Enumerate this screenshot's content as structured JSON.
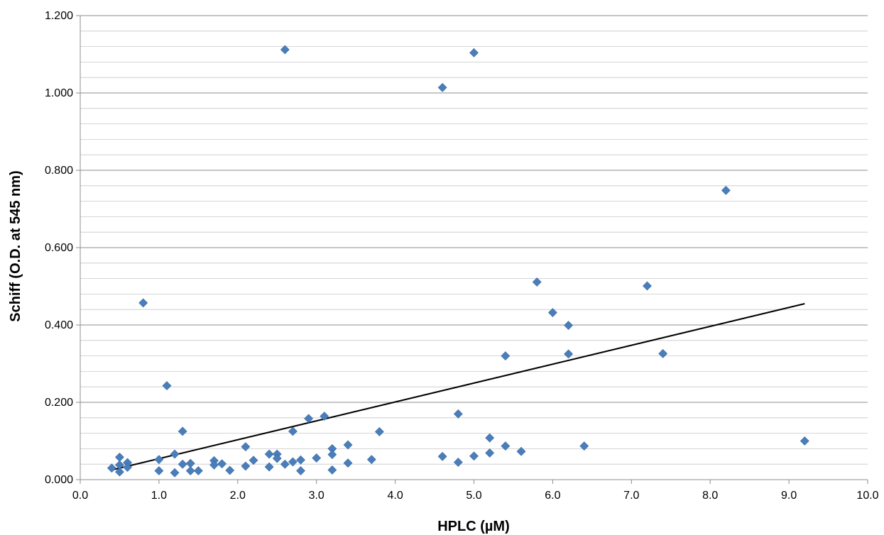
{
  "chart_data": {
    "type": "scatter",
    "title": "",
    "xlabel": "HPLC (µM)",
    "ylabel": "Schiff (O.D. at 545 nm)",
    "xlim": [
      0,
      10
    ],
    "ylim": [
      0,
      1.2
    ],
    "x_ticks": [
      "0.0",
      "1.0",
      "2.0",
      "3.0",
      "4.0",
      "5.0",
      "6.0",
      "7.0",
      "8.0",
      "9.0",
      "10.0"
    ],
    "y_ticks": [
      "0.000",
      "0.200",
      "0.400",
      "0.600",
      "0.800",
      "1.000",
      "1.200"
    ],
    "grid": "horizontal",
    "legend": "none",
    "marker": "diamond",
    "marker_color": "#4a7ebb",
    "trendline": {
      "color": "#000000",
      "x": [
        0.4,
        9.2
      ],
      "y": [
        0.025,
        0.455
      ]
    },
    "points": [
      [
        0.4,
        0.03
      ],
      [
        0.5,
        0.058
      ],
      [
        0.5,
        0.02
      ],
      [
        0.5,
        0.038
      ],
      [
        0.6,
        0.044
      ],
      [
        0.6,
        0.032
      ],
      [
        0.8,
        0.457
      ],
      [
        1.0,
        0.052
      ],
      [
        1.0,
        0.023
      ],
      [
        1.1,
        0.243
      ],
      [
        1.2,
        0.066
      ],
      [
        1.2,
        0.018
      ],
      [
        1.3,
        0.125
      ],
      [
        1.3,
        0.04
      ],
      [
        1.4,
        0.042
      ],
      [
        1.4,
        0.023
      ],
      [
        1.5,
        0.023
      ],
      [
        1.7,
        0.049
      ],
      [
        1.7,
        0.038
      ],
      [
        1.8,
        0.041
      ],
      [
        1.9,
        0.024
      ],
      [
        2.1,
        0.085
      ],
      [
        2.1,
        0.035
      ],
      [
        2.2,
        0.05
      ],
      [
        2.4,
        0.066
      ],
      [
        2.4,
        0.033
      ],
      [
        2.5,
        0.066
      ],
      [
        2.5,
        0.055
      ],
      [
        2.6,
        0.04
      ],
      [
        2.6,
        1.112
      ],
      [
        2.7,
        0.125
      ],
      [
        2.7,
        0.046
      ],
      [
        2.8,
        0.051
      ],
      [
        2.8,
        0.023
      ],
      [
        2.9,
        0.158
      ],
      [
        3.0,
        0.056
      ],
      [
        3.1,
        0.164
      ],
      [
        3.2,
        0.08
      ],
      [
        3.2,
        0.065
      ],
      [
        3.2,
        0.025
      ],
      [
        3.4,
        0.09
      ],
      [
        3.4,
        0.043
      ],
      [
        3.7,
        0.052
      ],
      [
        3.8,
        0.124
      ],
      [
        4.6,
        1.014
      ],
      [
        4.6,
        0.06
      ],
      [
        4.8,
        0.17
      ],
      [
        4.8,
        0.045
      ],
      [
        5.0,
        1.104
      ],
      [
        5.0,
        0.061
      ],
      [
        5.2,
        0.108
      ],
      [
        5.2,
        0.069
      ],
      [
        5.4,
        0.32
      ],
      [
        5.4,
        0.087
      ],
      [
        5.6,
        0.073
      ],
      [
        5.8,
        0.511
      ],
      [
        6.0,
        0.432
      ],
      [
        6.2,
        0.399
      ],
      [
        6.2,
        0.325
      ],
      [
        6.4,
        0.087
      ],
      [
        7.2,
        0.501
      ],
      [
        7.4,
        0.326
      ],
      [
        8.2,
        0.748
      ],
      [
        9.2,
        0.1
      ]
    ]
  }
}
